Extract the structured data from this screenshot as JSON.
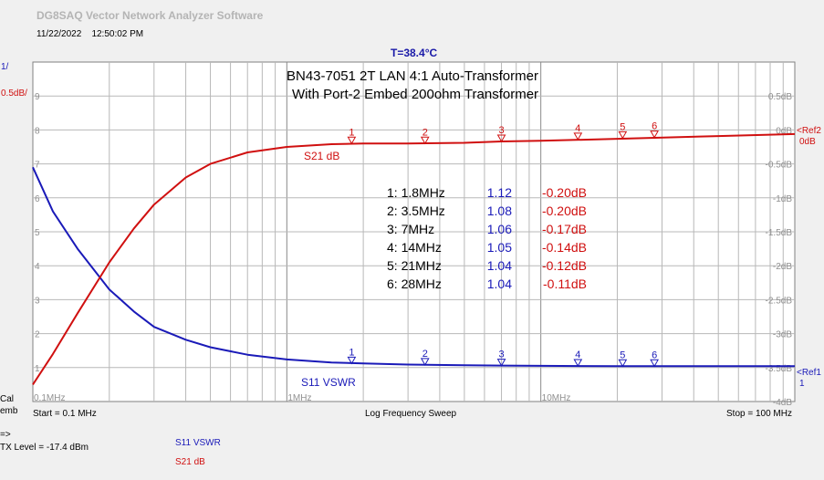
{
  "header": {
    "app_title": "DG8SAQ Vector Network Analyzer Software",
    "date": "11/22/2022",
    "time": "12:50:02 PM",
    "temperature": "T=38.4°C"
  },
  "chart_data": {
    "type": "line",
    "title": "BN43-7051 2T LAN  4:1 Auto-Transformer",
    "subtitle": "With Port-2 Embed 200ohm Transformer",
    "x_scale": "log",
    "xlim_mhz": [
      0.1,
      100
    ],
    "x_tick_labels": [
      {
        "value": 0.1,
        "label": "0.1MHz"
      },
      {
        "value": 1,
        "label": "1MHz"
      },
      {
        "value": 10,
        "label": "10MHz"
      }
    ],
    "left_axis": {
      "scale_label": "1/",
      "ylim": [
        0,
        10
      ],
      "tick_labels": [
        "1",
        "2",
        "3",
        "4",
        "5",
        "6",
        "7",
        "8",
        "9"
      ],
      "ref_label": "<Ref1",
      "ref_value": "1"
    },
    "right_axis": {
      "scale_label": "0.5dB/",
      "ylim": [
        -4,
        1
      ],
      "tick_labels": [
        "0.5dB",
        "0dB",
        "-0.5dB",
        "-1dB",
        "-1.5dB",
        "-2dB",
        "-2.5dB",
        "-3dB",
        "-3.5dB",
        "-4dB"
      ],
      "ref_label": "<Ref2",
      "ref_value": "0dB"
    },
    "grid": true,
    "series": [
      {
        "name": "S11 VSWR",
        "axis": "left",
        "color": "#1a1ab8",
        "x": [
          0.1,
          0.12,
          0.15,
          0.2,
          0.25,
          0.3,
          0.4,
          0.5,
          0.7,
          1,
          1.5,
          2,
          3,
          5,
          7,
          10,
          20,
          50,
          100
        ],
        "y": [
          6.9,
          5.6,
          4.5,
          3.3,
          2.65,
          2.2,
          1.82,
          1.6,
          1.38,
          1.24,
          1.15,
          1.12,
          1.09,
          1.07,
          1.06,
          1.05,
          1.04,
          1.04,
          1.04
        ]
      },
      {
        "name": "S21 dB",
        "axis": "right",
        "color": "#d01010",
        "x": [
          0.1,
          0.12,
          0.15,
          0.2,
          0.25,
          0.3,
          0.4,
          0.5,
          0.7,
          1,
          1.5,
          2,
          3,
          5,
          7,
          10,
          20,
          50,
          100
        ],
        "y": [
          -3.75,
          -3.3,
          -2.7,
          -1.95,
          -1.45,
          -1.1,
          -0.7,
          -0.5,
          -0.33,
          -0.25,
          -0.21,
          -0.2,
          -0.2,
          -0.19,
          -0.17,
          -0.16,
          -0.13,
          -0.09,
          -0.06
        ]
      }
    ],
    "markers": [
      {
        "id": "1",
        "freq_mhz": 1.8,
        "freq": "1.8MHz",
        "vswr": 1.12,
        "vswr_label": "1.12",
        "s21_db": -0.2,
        "s21_label": "-0.20dB"
      },
      {
        "id": "2",
        "freq_mhz": 3.5,
        "freq": "3.5MHz",
        "vswr": 1.08,
        "vswr_label": "1.08",
        "s21_db": -0.2,
        "s21_label": "-0.20dB"
      },
      {
        "id": "3",
        "freq_mhz": 7,
        "freq": "7MHz",
        "vswr": 1.06,
        "vswr_label": "1.06",
        "s21_db": -0.17,
        "s21_label": "-0.17dB"
      },
      {
        "id": "4",
        "freq_mhz": 14,
        "freq": "14MHz",
        "vswr": 1.05,
        "vswr_label": "1.05",
        "s21_db": -0.14,
        "s21_label": "-0.14dB"
      },
      {
        "id": "5",
        "freq_mhz": 21,
        "freq": "21MHz",
        "vswr": 1.04,
        "vswr_label": "1.04",
        "s21_db": -0.12,
        "s21_label": "-0.12dB"
      },
      {
        "id": "6",
        "freq_mhz": 28,
        "freq": "28MHz",
        "vswr": 1.04,
        "vswr_label": "1.04",
        "s21_db": -0.11,
        "s21_label": "-0.11dB"
      }
    ]
  },
  "footer": {
    "start": "Start = 0.1 MHz",
    "sweep": "Log Frequency Sweep",
    "stop": "Stop = 100 MHz",
    "cal": "Cal",
    "emb": "emb",
    "arrow": "=>",
    "tx_level": "TX Level = -17.4 dBm",
    "legend_s11": "S11  VSWR",
    "legend_s21": "S21  dB"
  }
}
